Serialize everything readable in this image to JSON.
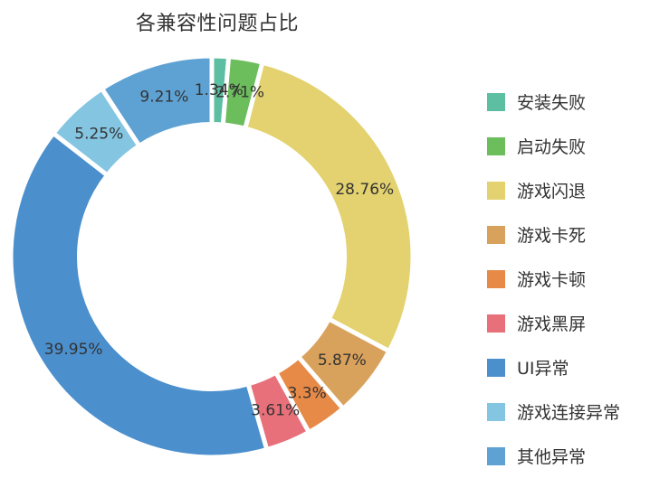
{
  "chart_data": {
    "type": "pie",
    "title": "各兼容性问题占比",
    "categories": [
      "安装失败",
      "启动失败",
      "游戏闪退",
      "游戏卡死",
      "游戏卡顿",
      "游戏黑屏",
      "UI异常",
      "游戏连接异常",
      "其他异常"
    ],
    "values": [
      1.34,
      2.71,
      28.76,
      5.87,
      3.3,
      3.61,
      39.95,
      5.25,
      9.21
    ],
    "labels": [
      "1.34%",
      "2.71%",
      "28.76%",
      "5.87%",
      "3.3%",
      "3.61%",
      "39.95%",
      "5.25%",
      "9.21%"
    ],
    "colors": [
      "#5dbfa2",
      "#6cbd5c",
      "#e3d26f",
      "#d9a25c",
      "#e88a47",
      "#e8707a",
      "#4b8fcd",
      "#84c6e2",
      "#5ea2d3"
    ],
    "inner_radius_ratio": 0.66,
    "legend_position": "right"
  }
}
